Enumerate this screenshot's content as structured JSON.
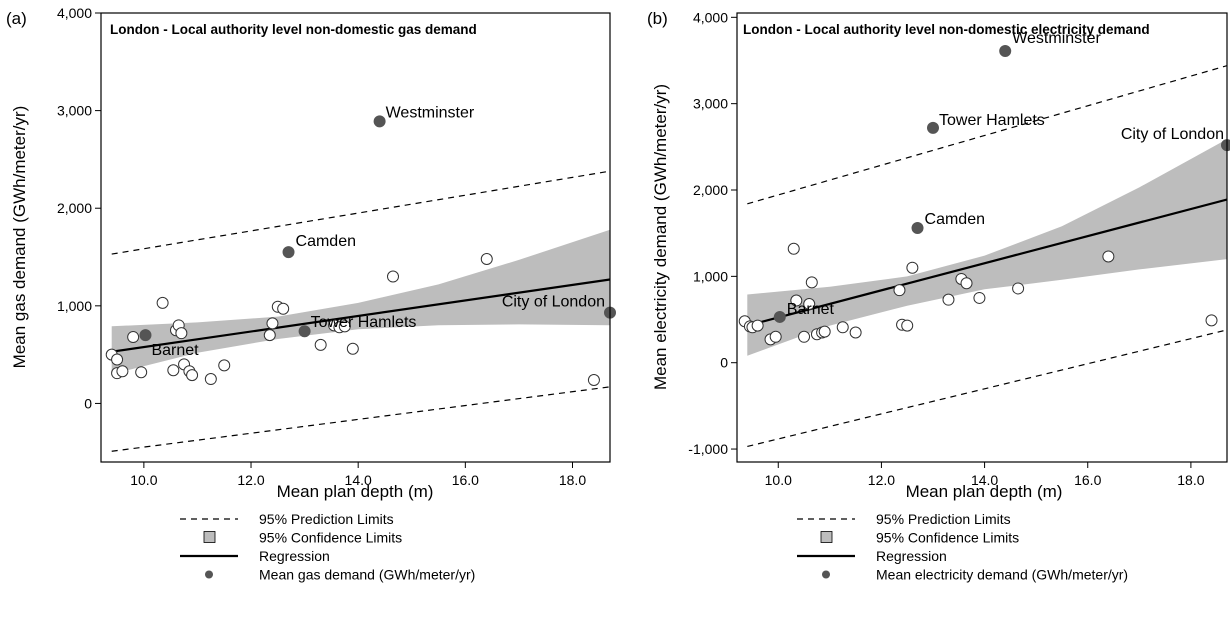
{
  "legend_colors": {
    "band": "#bdbdbd",
    "points": "#555555",
    "line": "#000000"
  },
  "chart_data": [
    {
      "type": "scatter",
      "panel": "(a)",
      "title": "London - Local authority level non-domestic gas demand",
      "xlabel": "Mean plan depth (m)",
      "ylabel": "Mean gas demand (GWh/meter/yr)",
      "xlim": [
        9.2,
        18.7
      ],
      "ylim": [
        -600,
        4000
      ],
      "xticks": [
        10,
        12,
        14,
        16,
        18
      ],
      "xtick_labels": [
        "10.0",
        "12.0",
        "14.0",
        "16.0",
        "18.0"
      ],
      "yticks": [
        0,
        1000,
        2000,
        3000,
        4000
      ],
      "ytick_labels": [
        "0",
        "1,000",
        "2,000",
        "3,000",
        "4,000"
      ],
      "grid": false,
      "legend_position": "bottom",
      "legend": [
        "95% Prediction Limits",
        "95% Confidence Limits",
        "Regression",
        "Mean gas demand (GWh/meter/yr)"
      ],
      "regression": {
        "x": [
          9.4,
          18.7
        ],
        "y": [
          530,
          1270
        ]
      },
      "confidence_band": {
        "x": [
          9.4,
          11.0,
          12.5,
          14.0,
          15.5,
          17.0,
          18.7
        ],
        "lower": [
          300,
          520,
          660,
          760,
          800,
          810,
          800
        ],
        "upper": [
          790,
          830,
          890,
          1030,
          1220,
          1470,
          1780
        ]
      },
      "prediction_band": {
        "x": [
          9.4,
          18.7
        ],
        "lower": [
          -490,
          170
        ],
        "upper": [
          1530,
          2380
        ]
      },
      "open_points": [
        {
          "x": 9.4,
          "y": 500
        },
        {
          "x": 9.5,
          "y": 450
        },
        {
          "x": 9.5,
          "y": 310
        },
        {
          "x": 9.6,
          "y": 330
        },
        {
          "x": 9.8,
          "y": 680
        },
        {
          "x": 9.95,
          "y": 320
        },
        {
          "x": 10.35,
          "y": 1030
        },
        {
          "x": 10.55,
          "y": 340
        },
        {
          "x": 10.6,
          "y": 750
        },
        {
          "x": 10.65,
          "y": 800
        },
        {
          "x": 10.7,
          "y": 720
        },
        {
          "x": 10.75,
          "y": 400
        },
        {
          "x": 10.85,
          "y": 330
        },
        {
          "x": 10.9,
          "y": 290
        },
        {
          "x": 11.25,
          "y": 250
        },
        {
          "x": 11.5,
          "y": 390
        },
        {
          "x": 12.35,
          "y": 700
        },
        {
          "x": 12.4,
          "y": 820
        },
        {
          "x": 12.5,
          "y": 990
        },
        {
          "x": 12.6,
          "y": 970
        },
        {
          "x": 13.3,
          "y": 600
        },
        {
          "x": 13.55,
          "y": 800
        },
        {
          "x": 13.65,
          "y": 780
        },
        {
          "x": 13.75,
          "y": 790
        },
        {
          "x": 13.9,
          "y": 560
        },
        {
          "x": 14.65,
          "y": 1300
        },
        {
          "x": 16.4,
          "y": 1480
        },
        {
          "x": 18.4,
          "y": 240
        }
      ],
      "labeled_points": [
        {
          "name": "Westminster",
          "x": 14.4,
          "y": 2890
        },
        {
          "name": "Camden",
          "x": 12.7,
          "y": 1550
        },
        {
          "name": "Tower Hamlets",
          "x": 13.0,
          "y": 740
        },
        {
          "name": "City of London",
          "x": 18.7,
          "y": 930
        },
        {
          "name": "Barnet",
          "x": 10.03,
          "y": 700
        }
      ]
    },
    {
      "type": "scatter",
      "panel": "(b)",
      "title": "London - Local authority level non-domestic electricity demand",
      "xlabel": "Mean plan depth (m)",
      "ylabel": "Mean electricity demand (GWh/meter/yr)",
      "xlim": [
        9.2,
        18.7
      ],
      "ylim": [
        -1150,
        4050
      ],
      "xticks": [
        10,
        12,
        14,
        16,
        18
      ],
      "xtick_labels": [
        "10.0",
        "12.0",
        "14.0",
        "16.0",
        "18.0"
      ],
      "yticks": [
        -1000,
        0,
        1000,
        2000,
        3000,
        4000
      ],
      "ytick_labels": [
        "-1,000",
        "0",
        "1,000",
        "2,000",
        "3,000",
        "4,000"
      ],
      "grid": false,
      "legend_position": "bottom",
      "legend": [
        "95% Prediction Limits",
        "95% Confidence Limits",
        "Regression",
        "Mean electricity demand (GWh/meter/yr)"
      ],
      "regression": {
        "x": [
          9.4,
          18.7
        ],
        "y": [
          430,
          1890
        ]
      },
      "confidence_band": {
        "x": [
          9.4,
          11.0,
          12.5,
          14.0,
          15.5,
          17.0,
          18.7
        ],
        "lower": [
          80,
          430,
          660,
          850,
          960,
          1080,
          1200
        ],
        "upper": [
          790,
          880,
          1000,
          1240,
          1580,
          2030,
          2590
        ]
      },
      "prediction_band": {
        "x": [
          9.4,
          18.7
        ],
        "lower": [
          -970,
          380
        ],
        "upper": [
          1840,
          3440
        ]
      },
      "open_points": [
        {
          "x": 9.35,
          "y": 480
        },
        {
          "x": 9.45,
          "y": 420
        },
        {
          "x": 9.5,
          "y": 410
        },
        {
          "x": 9.6,
          "y": 430
        },
        {
          "x": 9.85,
          "y": 270
        },
        {
          "x": 9.95,
          "y": 300
        },
        {
          "x": 10.3,
          "y": 1320
        },
        {
          "x": 10.35,
          "y": 720
        },
        {
          "x": 10.5,
          "y": 300
        },
        {
          "x": 10.6,
          "y": 680
        },
        {
          "x": 10.65,
          "y": 930
        },
        {
          "x": 10.75,
          "y": 330
        },
        {
          "x": 10.85,
          "y": 350
        },
        {
          "x": 10.9,
          "y": 360
        },
        {
          "x": 11.25,
          "y": 410
        },
        {
          "x": 11.5,
          "y": 350
        },
        {
          "x": 12.35,
          "y": 840
        },
        {
          "x": 12.4,
          "y": 440
        },
        {
          "x": 12.5,
          "y": 430
        },
        {
          "x": 12.6,
          "y": 1100
        },
        {
          "x": 13.3,
          "y": 730
        },
        {
          "x": 13.55,
          "y": 970
        },
        {
          "x": 13.65,
          "y": 920
        },
        {
          "x": 13.9,
          "y": 750
        },
        {
          "x": 14.65,
          "y": 860
        },
        {
          "x": 16.4,
          "y": 1230
        },
        {
          "x": 18.4,
          "y": 490
        }
      ],
      "labeled_points": [
        {
          "name": "Westminster",
          "x": 14.4,
          "y": 3610
        },
        {
          "name": "Tower Hamlets",
          "x": 13.0,
          "y": 2720
        },
        {
          "name": "City of London",
          "x": 18.7,
          "y": 2520
        },
        {
          "name": "Camden",
          "x": 12.7,
          "y": 1560
        },
        {
          "name": "Barnet",
          "x": 10.03,
          "y": 530
        }
      ]
    }
  ]
}
